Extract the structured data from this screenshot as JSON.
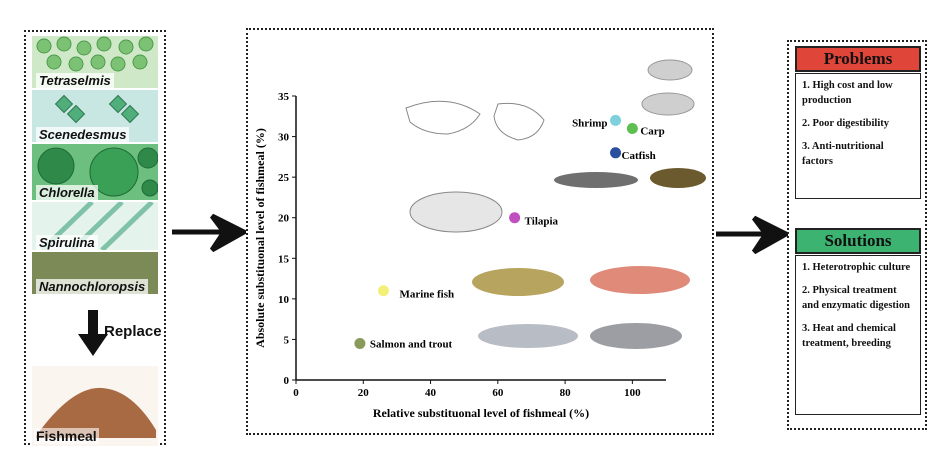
{
  "algae": [
    {
      "name": "Tetraselmis",
      "color": "#8fcf8a"
    },
    {
      "name": "Scenedesmus",
      "color": "#9fd4cc"
    },
    {
      "name": "Chlorella",
      "color": "#3c9a52"
    },
    {
      "name": "Spirulina",
      "color": "#b9e1d2"
    },
    {
      "name": "Nannochloropsis",
      "color": "#6f7f4a"
    }
  ],
  "replace_label": "Replace",
  "fishmeal_label": "Fishmeal",
  "chart_data": {
    "type": "scatter",
    "xlabel": "Relative substituonal level of fishmeal (%)",
    "ylabel": "Absolute substituonal level of fishmeal (%)",
    "xlim": [
      0,
      110
    ],
    "ylim": [
      0,
      35
    ],
    "xticks": [
      0,
      20,
      40,
      60,
      80,
      100
    ],
    "yticks": [
      0,
      5,
      10,
      15,
      20,
      25,
      30,
      35
    ],
    "points": [
      {
        "name": "Shrimp",
        "x": 95,
        "y": 32,
        "color": "#7fd0dd"
      },
      {
        "name": "Carp",
        "x": 100,
        "y": 31,
        "color": "#5cbf4f"
      },
      {
        "name": "Catfish",
        "x": 95,
        "y": 28,
        "color": "#2a4f9e"
      },
      {
        "name": "Tilapia",
        "x": 65,
        "y": 20,
        "color": "#c04fc0"
      },
      {
        "name": "Marine fish",
        "x": 26,
        "y": 11,
        "color": "#f3f07a"
      },
      {
        "name": "Salmon and trout",
        "x": 19,
        "y": 4.5,
        "color": "#8a9a5b"
      }
    ]
  },
  "problems": {
    "title": "Problems",
    "items": [
      "1. High cost and low production",
      "2. Poor digestibility",
      "3. Anti-nutritional factors"
    ]
  },
  "solutions": {
    "title": "Solutions",
    "items": [
      "1. Heterotrophic culture",
      "2. Physical treatment and enzymatic digestion",
      "3. Heat and chemical treatment, breeding"
    ]
  },
  "colors": {
    "problems_head": "#e0453a",
    "solutions_head": "#3cb371"
  }
}
